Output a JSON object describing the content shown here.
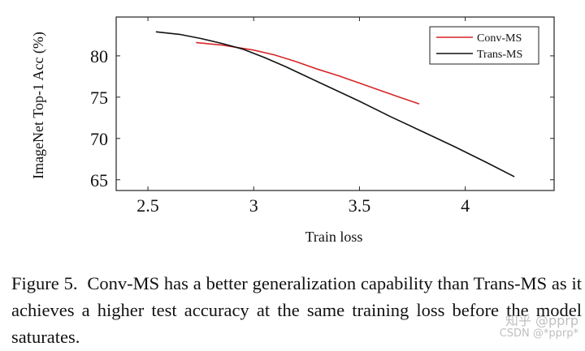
{
  "chart_data": {
    "type": "line",
    "title": "",
    "xlabel": "Train loss",
    "ylabel": "ImageNet Top-1 Acc (%)",
    "xlim": [
      2.35,
      4.42
    ],
    "ylim": [
      63.7,
      84.7
    ],
    "xticks": [
      2.5,
      3,
      3.5,
      4
    ],
    "xtick_labels": [
      "2.5",
      "3",
      "3.5",
      "4"
    ],
    "yticks": [
      65,
      70,
      75,
      80
    ],
    "ytick_labels": [
      "65",
      "70",
      "75",
      "80"
    ],
    "grid": false,
    "legend_position": "top-right",
    "series": [
      {
        "name": "Conv-MS",
        "color": "#d62728",
        "x": [
          2.73,
          2.85,
          3.0,
          3.1,
          3.2,
          3.3,
          3.4,
          3.5,
          3.6,
          3.7,
          3.78
        ],
        "y": [
          81.6,
          81.3,
          80.7,
          80.1,
          79.3,
          78.4,
          77.6,
          76.7,
          75.8,
          74.9,
          74.2
        ]
      },
      {
        "name": "Trans-MS",
        "color": "#111111",
        "x": [
          2.54,
          2.65,
          2.75,
          2.85,
          2.95,
          3.05,
          3.15,
          3.25,
          3.35,
          3.5,
          3.65,
          3.8,
          3.95,
          4.1,
          4.23
        ],
        "y": [
          82.9,
          82.6,
          82.1,
          81.5,
          80.8,
          79.8,
          78.7,
          77.5,
          76.3,
          74.5,
          72.6,
          70.8,
          69.0,
          67.1,
          65.4
        ]
      }
    ]
  },
  "caption": {
    "label": "Figure 5.",
    "text": "Conv-MS has a better generalization capability than Trans-MS as it achieves a higher test accuracy at the same training loss before the model saturates."
  },
  "watermark": {
    "line1": "知乎 @pprp",
    "line2": "CSDN @*pprp*"
  }
}
